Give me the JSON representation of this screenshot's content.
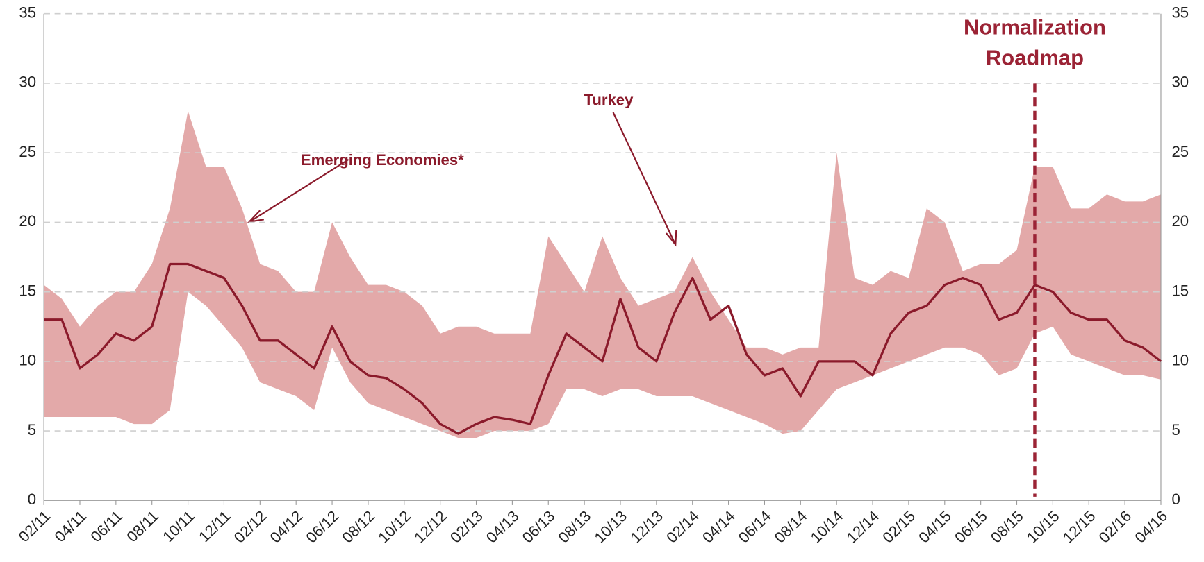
{
  "chart_data": {
    "type": "line",
    "x": [
      "02/11",
      "03/11",
      "04/11",
      "05/11",
      "06/11",
      "07/11",
      "08/11",
      "09/11",
      "10/11",
      "11/11",
      "12/11",
      "01/12",
      "02/12",
      "03/12",
      "04/12",
      "05/12",
      "06/12",
      "07/12",
      "08/12",
      "09/12",
      "10/12",
      "11/12",
      "12/12",
      "01/13",
      "02/13",
      "03/13",
      "04/13",
      "05/13",
      "06/13",
      "07/13",
      "08/13",
      "09/13",
      "10/13",
      "11/13",
      "12/13",
      "01/14",
      "02/14",
      "03/14",
      "04/14",
      "05/14",
      "06/14",
      "07/14",
      "08/14",
      "09/14",
      "10/14",
      "11/14",
      "12/14",
      "01/15",
      "02/15",
      "03/15",
      "04/15",
      "05/15",
      "06/15",
      "07/15",
      "08/15",
      "09/15",
      "10/15",
      "11/15",
      "12/15",
      "01/16",
      "02/16",
      "03/16",
      "04/16"
    ],
    "xticks": [
      "02/11",
      "04/11",
      "06/11",
      "08/11",
      "10/11",
      "12/11",
      "02/12",
      "04/12",
      "06/12",
      "08/12",
      "10/12",
      "12/12",
      "02/13",
      "04/13",
      "06/13",
      "08/13",
      "10/13",
      "12/13",
      "02/14",
      "04/14",
      "06/14",
      "08/14",
      "10/14",
      "12/14",
      "02/15",
      "04/15",
      "06/15",
      "08/15",
      "10/15",
      "12/15",
      "02/16",
      "04/16"
    ],
    "series": [
      {
        "name": "Turkey",
        "color": "#8b1a2b",
        "values": [
          13,
          13,
          9.5,
          10.5,
          12,
          11.5,
          12.5,
          17,
          17,
          16.5,
          16,
          14,
          11.5,
          11.5,
          10.5,
          9.5,
          12.5,
          10,
          9,
          8.8,
          8,
          7,
          5.5,
          4.8,
          5.5,
          6,
          5.8,
          5.5,
          9,
          12,
          11,
          10,
          14.5,
          11,
          10,
          13.5,
          16,
          13,
          14,
          10.5,
          9,
          9.5,
          7.5,
          10,
          10,
          10,
          9,
          12,
          13.5,
          14,
          15.5,
          16,
          15.5,
          13,
          13.5,
          15.5,
          15,
          13.5,
          13,
          13,
          11.5,
          11,
          10
        ]
      },
      {
        "name": "Emerging Economies*",
        "color": "#e3a9a9",
        "low": [
          6,
          6,
          6,
          6,
          6,
          5.5,
          5.5,
          6.5,
          15,
          14,
          12.5,
          11,
          8.5,
          8,
          7.5,
          6.5,
          11,
          8.5,
          7,
          6.5,
          6,
          5.5,
          5,
          4.5,
          4.5,
          5,
          5,
          5,
          5.5,
          8,
          8,
          7.5,
          8,
          8,
          7.5,
          7.5,
          7.5,
          7,
          6.5,
          6,
          5.5,
          4.8,
          5,
          6.5,
          8,
          8.5,
          9,
          9.5,
          10,
          10.5,
          11,
          11,
          10.5,
          9,
          9.5,
          12,
          12.5,
          10.5,
          10,
          9.5,
          9,
          9,
          8.7
        ],
        "high": [
          15.5,
          14.5,
          12.5,
          14,
          15,
          15,
          17,
          21,
          28,
          24,
          24,
          21,
          17,
          16.5,
          15,
          15,
          20,
          17.5,
          15.5,
          15.5,
          15,
          14,
          12,
          12.5,
          12.5,
          12,
          12,
          12,
          19,
          17,
          15,
          19,
          16,
          14,
          14.5,
          15,
          17.5,
          15,
          13,
          11,
          11,
          10.5,
          11,
          11,
          25,
          16,
          15.5,
          16.5,
          16,
          21,
          20,
          16.5,
          17,
          17,
          18,
          24,
          24,
          21,
          21,
          22,
          21.5,
          21.5,
          22
        ]
      }
    ],
    "ylim": [
      0,
      35
    ],
    "yticks": [
      0,
      5,
      10,
      15,
      20,
      25,
      30,
      35
    ],
    "y2lim": [
      0,
      35
    ],
    "y2ticks": [
      0,
      5,
      10,
      15,
      20,
      25,
      30,
      35
    ],
    "grid": true,
    "annotations": [
      {
        "text": [
          "Normalization",
          "Roadmap"
        ],
        "x": "09/15"
      }
    ]
  }
}
